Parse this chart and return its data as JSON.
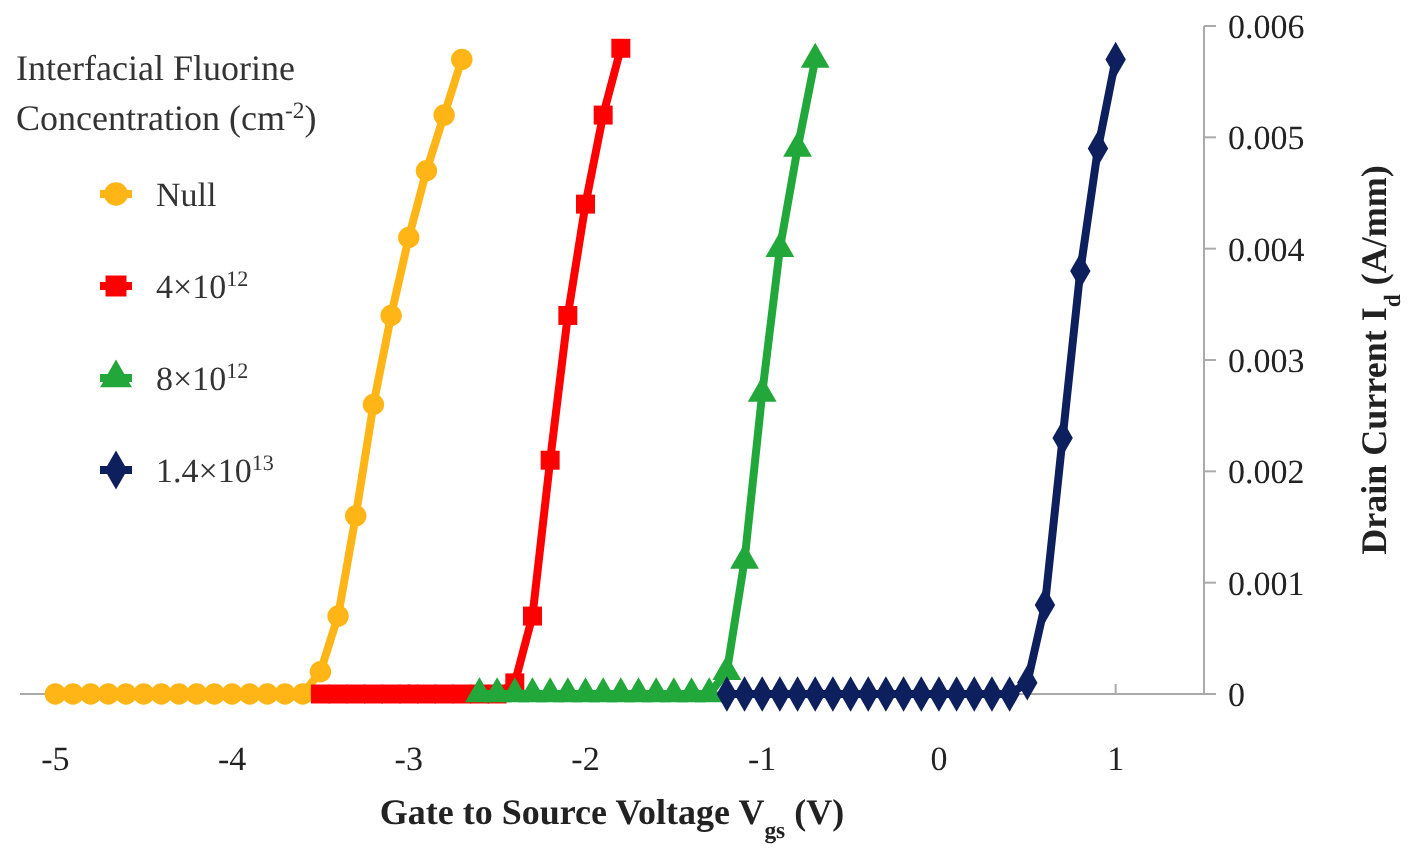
{
  "chart_data": {
    "type": "line",
    "xlabel": "Gate to Source Voltage V$_{gs}$ (V)",
    "ylabel": "Drain Current I$_{d}$ (A/mm)",
    "legend_title": "Interfacial Fluorine Concentration (cm$^{-2}$)",
    "legend": "top left",
    "grid": false,
    "xlim": [
      -5.2,
      1.5
    ],
    "xticks": [
      -5,
      -4,
      -3,
      -2,
      -1,
      0,
      1
    ],
    "ylim": [
      0,
      0.006
    ],
    "yticks": [
      0,
      0.001,
      0.002,
      0.003,
      0.004,
      0.005,
      0.006
    ],
    "series": [
      {
        "name": "Null",
        "color": "#ffb515",
        "marker": "circle",
        "x": [
          -5,
          -4.9,
          -4.8,
          -4.7,
          -4.6,
          -4.5,
          -4.4,
          -4.3,
          -4.2,
          -4.1,
          -4,
          -3.9,
          -3.8,
          -3.7,
          -3.6,
          -3.5,
          -3.4,
          -3.3,
          -3.2,
          -3.1,
          -3,
          -2.9,
          -2.8,
          -2.7
        ],
        "values": [
          0,
          0,
          0,
          0,
          0,
          0,
          0,
          0,
          0,
          0,
          0,
          0,
          0,
          0,
          0,
          0.0002,
          0.0007,
          0.0016,
          0.0026,
          0.0034,
          0.0041,
          0.0047,
          0.0052,
          0.0057
        ]
      },
      {
        "name": "4×10$^{12}$",
        "color": "#ff0000",
        "marker": "square",
        "x": [
          -3.5,
          -3.4,
          -3.3,
          -3.2,
          -3.1,
          -3,
          -2.9,
          -2.8,
          -2.7,
          -2.6,
          -2.5,
          -2.4,
          -2.3,
          -2.2,
          -2.1,
          -2,
          -1.9,
          -1.8
        ],
        "values": [
          0,
          0,
          0,
          0,
          0,
          0,
          0,
          0,
          0,
          0,
          0,
          0.0001,
          0.0007,
          0.0021,
          0.0034,
          0.0044,
          0.0052,
          0.0058
        ]
      },
      {
        "name": "8×10$^{12}$",
        "color": "#22a83a",
        "marker": "triangle",
        "x": [
          -2.6,
          -2.5,
          -2.4,
          -2.3,
          -2.2,
          -2.1,
          -2,
          -1.9,
          -1.8,
          -1.7,
          -1.6,
          -1.5,
          -1.4,
          -1.3,
          -1.2,
          -1.1,
          -1,
          -0.9,
          -0.8,
          -0.7
        ],
        "values": [
          0,
          0,
          0,
          0,
          0,
          0,
          0,
          0,
          0,
          0,
          0,
          0,
          0,
          0,
          0.0002,
          0.0012,
          0.0027,
          0.004,
          0.0049,
          0.0057
        ]
      },
      {
        "name": "1.4×10$^{13}$",
        "color": "#0d1f5c",
        "marker": "diamond",
        "x": [
          -1.2,
          -1.1,
          -1,
          -0.9,
          -0.8,
          -0.7,
          -0.6,
          -0.5,
          -0.4,
          -0.3,
          -0.2,
          -0.1,
          0,
          0.1,
          0.2,
          0.3,
          0.4,
          0.5,
          0.6,
          0.7,
          0.8,
          0.9,
          1
        ],
        "values": [
          0,
          0,
          0,
          0,
          0,
          0,
          0,
          0,
          0,
          0,
          0,
          0,
          0,
          0,
          0,
          0,
          0,
          0.0001,
          0.0008,
          0.0023,
          0.0038,
          0.0049,
          0.0057
        ]
      }
    ]
  }
}
